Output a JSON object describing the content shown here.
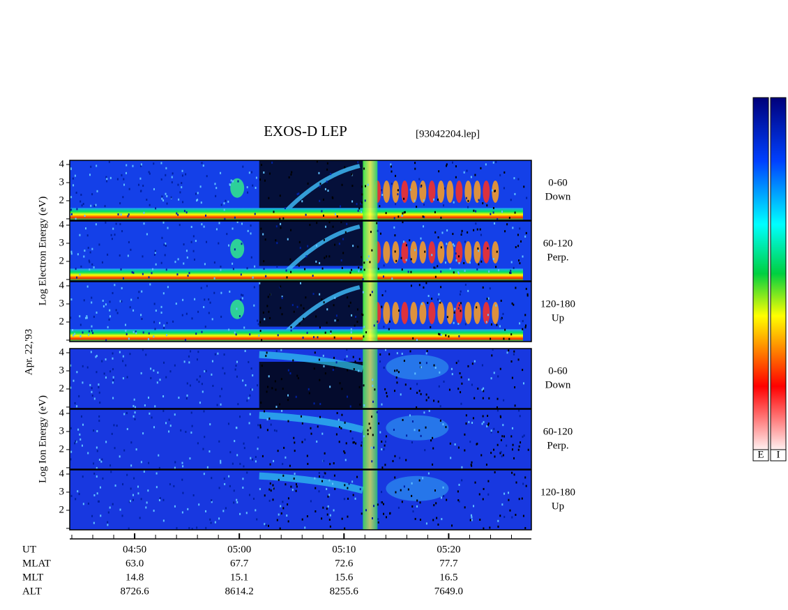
{
  "title": "EXOS-D LEP",
  "file": "[93042204.lep]",
  "date_label": "Apr. 22,'93",
  "electron": {
    "axis_label": "Log Electron Energy (eV)"
  },
  "ion": {
    "axis_label": "Log Ion Energy (eV)"
  },
  "panels": [
    {
      "angle": "0-60",
      "dir": "Down"
    },
    {
      "angle": "60-120",
      "dir": "Perp."
    },
    {
      "angle": "120-180",
      "dir": "Up"
    }
  ],
  "energy_axis": {
    "lim": [
      0.92,
      4.23
    ],
    "ticks": [
      2,
      3,
      4
    ]
  },
  "time_axis": {
    "lim": [
      43.8,
      87.9
    ],
    "ticks": [
      {
        "value": 50,
        "label": "04:50"
      },
      {
        "value": 60,
        "label": "05:00"
      },
      {
        "value": 70,
        "label": "05:10"
      },
      {
        "value": 80,
        "label": "05:20"
      }
    ]
  },
  "orbit": {
    "ut_label": "UT",
    "rows": [
      {
        "name": "MLAT",
        "values": [
          "63.0",
          "67.7",
          "72.6",
          "77.7"
        ]
      },
      {
        "name": "MLT",
        "values": [
          "14.8",
          "15.1",
          "15.6",
          "16.5"
        ]
      },
      {
        "name": "ALT",
        "values": [
          "8726.6",
          "8614.2",
          "8255.6",
          "7649.0"
        ]
      }
    ]
  },
  "colorbars": [
    "E",
    "I"
  ]
}
